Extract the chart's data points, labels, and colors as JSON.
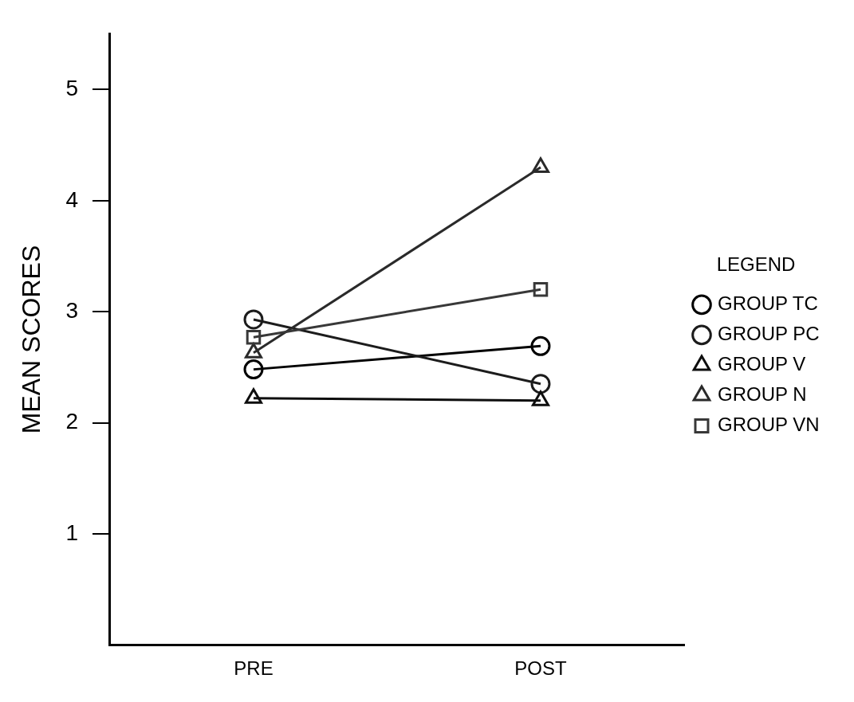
{
  "chart_data": {
    "type": "line",
    "ylabel": "MEAN SCORES",
    "legend_title": "LEGEND",
    "legend": "right",
    "categories": [
      "PRE",
      "POST"
    ],
    "series": [
      {
        "name": "GROUP TC",
        "color": "#000000",
        "marker": "circle",
        "values": [
          2.48,
          2.69
        ]
      },
      {
        "name": "GROUP PC",
        "color": "#1c1c1c",
        "marker": "circle",
        "values": [
          2.93,
          2.35
        ]
      },
      {
        "name": "GROUP V",
        "color": "#0e0e0e",
        "marker": "triangle",
        "values": [
          2.22,
          2.2
        ]
      },
      {
        "name": "GROUP N",
        "color": "#2a2a2a",
        "marker": "triangle",
        "values": [
          2.63,
          4.3
        ]
      },
      {
        "name": "GROUP VN",
        "color": "#383838",
        "marker": "square",
        "values": [
          2.77,
          3.2
        ]
      }
    ],
    "ylim": [
      0,
      5.5
    ],
    "yticks": [
      1,
      2,
      3,
      4,
      5
    ],
    "grid": false,
    "line_style": "solid"
  }
}
